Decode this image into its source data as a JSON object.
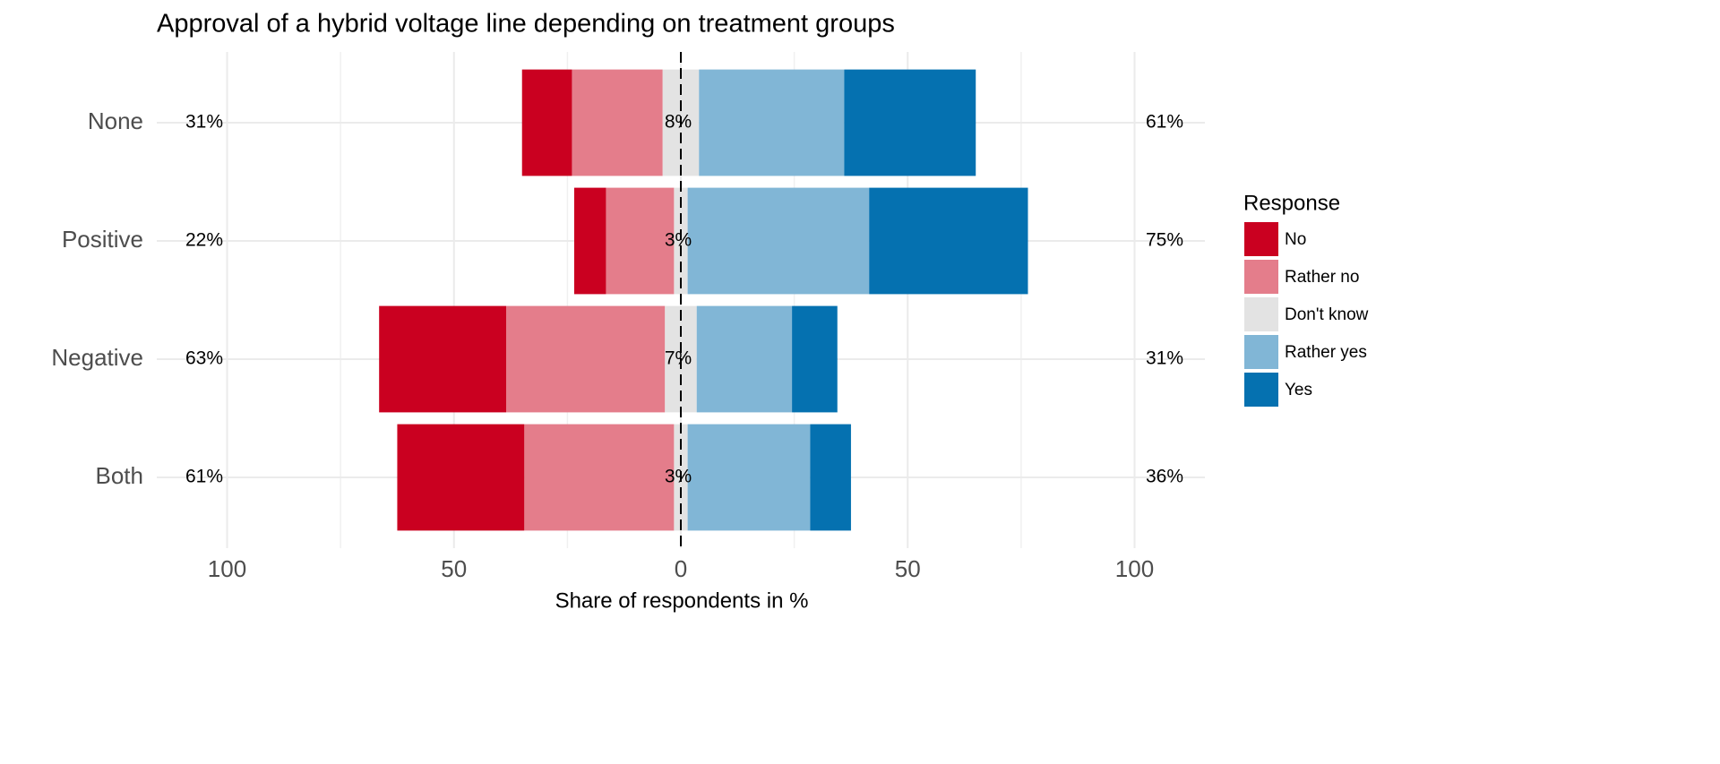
{
  "chart_data": {
    "type": "diverging_bar",
    "title": "Approval of a hybrid voltage line depending on treatment groups",
    "xlabel": "Share of respondents in %",
    "categories": [
      "None",
      "Positive",
      "Negative",
      "Both"
    ],
    "series": [
      {
        "name": "No",
        "color": "#ca0020",
        "side": "negative",
        "values": [
          11,
          7,
          28,
          28
        ]
      },
      {
        "name": "Rather no",
        "color": "#e47d8b",
        "side": "negative",
        "values": [
          20,
          15,
          35,
          33
        ]
      },
      {
        "name": "Don't know",
        "color": "#e3e3e3",
        "side": "neutral",
        "values": [
          8,
          3,
          7,
          3
        ],
        "value_labels": [
          "8%",
          "3%",
          "7%",
          "3%"
        ]
      },
      {
        "name": "Rather yes",
        "color": "#81b6d6",
        "side": "positive",
        "values": [
          32,
          40,
          21,
          27
        ]
      },
      {
        "name": "Yes",
        "color": "#0571b0",
        "side": "positive",
        "values": [
          29,
          35,
          10,
          9
        ]
      }
    ],
    "negative_totals": {
      "values": [
        31,
        22,
        63,
        61
      ],
      "value_labels": [
        "31%",
        "22%",
        "63%",
        "61%"
      ]
    },
    "positive_totals": {
      "values": [
        61,
        75,
        31,
        36
      ],
      "value_labels": [
        "61%",
        "75%",
        "31%",
        "36%"
      ]
    },
    "xlim": [
      -115.5,
      115.5
    ],
    "xticks": [
      {
        "value": -100,
        "label": "100"
      },
      {
        "value": -50,
        "label": "50"
      },
      0,
      50,
      {
        "value": 100,
        "label": "100"
      }
    ],
    "minor_xticks": [
      -75,
      -25,
      25,
      75
    ],
    "grid": true,
    "legend": {
      "title": "Response",
      "position": "right"
    }
  }
}
